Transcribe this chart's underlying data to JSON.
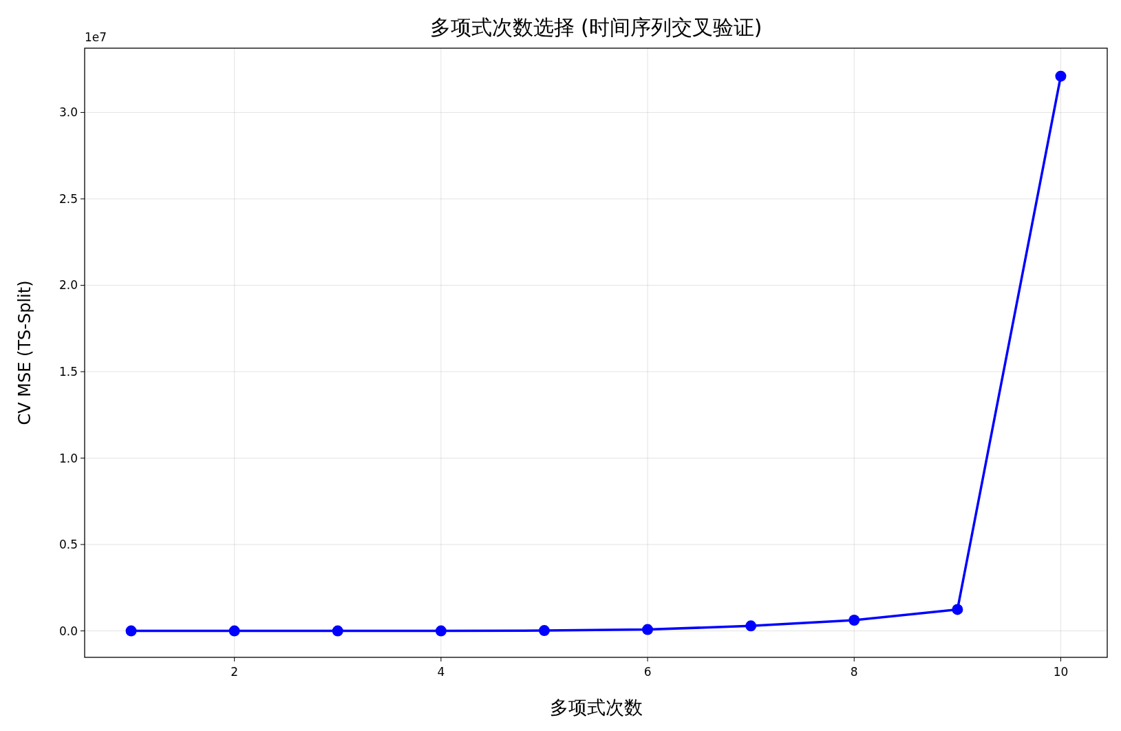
{
  "chart_data": {
    "type": "line",
    "title": "多项式次数选择 (时间序列交叉验证)",
    "xlabel": "多项式次数",
    "ylabel": "CV MSE (TS-Split)",
    "annotations": [
      "1e7"
    ],
    "x": [
      1,
      2,
      3,
      4,
      5,
      6,
      7,
      8,
      9,
      10
    ],
    "series": [
      {
        "color": "#0000ff",
        "values": [
          0,
          0,
          0,
          0,
          0.002,
          0.008,
          0.029,
          0.062,
          0.124,
          3.21
        ]
      }
    ],
    "xlim": [
      0.55,
      10.45
    ],
    "xticks": [
      2,
      4,
      6,
      8,
      10
    ],
    "ylim": [
      -0.153,
      3.372
    ],
    "yticks": [
      {
        "value": 0,
        "label": "0.0"
      },
      {
        "value": 0.5,
        "label": "0.5"
      },
      {
        "value": 1,
        "label": "1.0"
      },
      {
        "value": 1.5,
        "label": "1.5"
      },
      {
        "value": 2,
        "label": "2.0"
      },
      {
        "value": 2.5,
        "label": "2.5"
      },
      {
        "value": 3,
        "label": "3.0"
      }
    ],
    "grid": true,
    "marker": "circle",
    "line_style": "solid"
  }
}
